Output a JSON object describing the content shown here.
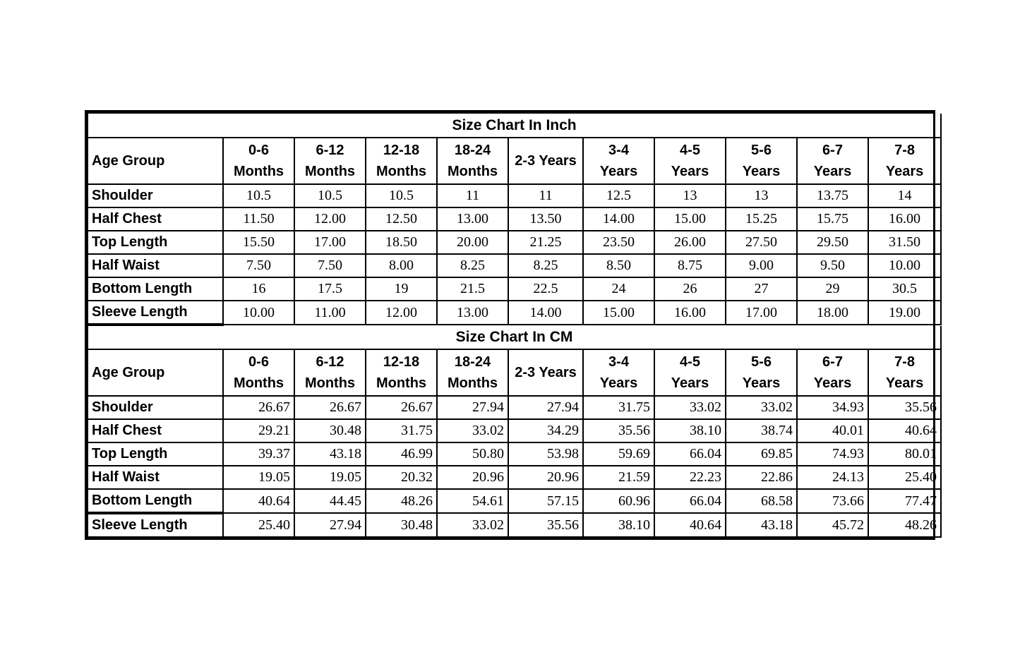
{
  "page": {
    "background_color": "#ffffff",
    "text_color": "#000000",
    "border_color": "#000000"
  },
  "chart_data": [
    {
      "type": "table",
      "title": "Size Chart In Inch",
      "unit": "inch",
      "corner_label": "Age Group",
      "columns": [
        [
          "0-6",
          "Months"
        ],
        [
          "6-12",
          "Months"
        ],
        [
          "12-18",
          "Months"
        ],
        [
          "18-24",
          "Months"
        ],
        [
          "2-3 Years"
        ],
        [
          "3-4",
          "Years"
        ],
        [
          "4-5",
          "Years"
        ],
        [
          "5-6",
          "Years"
        ],
        [
          "6-7",
          "Years"
        ],
        [
          "7-8",
          "Years"
        ]
      ],
      "rows": [
        {
          "label": "Shoulder",
          "values": [
            "10.5",
            "10.5",
            "10.5",
            "11",
            "11",
            "12.5",
            "13",
            "13",
            "13.75",
            "14"
          ]
        },
        {
          "label": "Half Chest",
          "values": [
            "11.50",
            "12.00",
            "12.50",
            "13.00",
            "13.50",
            "14.00",
            "15.00",
            "15.25",
            "15.75",
            "16.00"
          ]
        },
        {
          "label": "Top Length",
          "values": [
            "15.50",
            "17.00",
            "18.50",
            "20.00",
            "21.25",
            "23.50",
            "26.00",
            "27.50",
            "29.50",
            "31.50"
          ]
        },
        {
          "label": "Half Waist",
          "values": [
            "7.50",
            "7.50",
            "8.00",
            "8.25",
            "8.25",
            "8.50",
            "8.75",
            "9.00",
            "9.50",
            "10.00"
          ]
        },
        {
          "label": "Bottom Length",
          "values": [
            "16",
            "17.5",
            "19",
            "21.5",
            "22.5",
            "24",
            "26",
            "27",
            "29",
            "30.5"
          ]
        },
        {
          "label": "Sleeve Length",
          "values": [
            "10.00",
            "11.00",
            "12.00",
            "13.00",
            "14.00",
            "15.00",
            "16.00",
            "17.00",
            "18.00",
            "19.00"
          ]
        }
      ]
    },
    {
      "type": "table",
      "title": "Size Chart In CM",
      "unit": "cm",
      "corner_label": "Age Group",
      "columns": [
        [
          "0-6",
          "Months"
        ],
        [
          "6-12",
          "Months"
        ],
        [
          "12-18",
          "Months"
        ],
        [
          "18-24",
          "Months"
        ],
        [
          "2-3 Years"
        ],
        [
          "3-4",
          "Years"
        ],
        [
          "4-5",
          "Years"
        ],
        [
          "5-6",
          "Years"
        ],
        [
          "6-7",
          "Years"
        ],
        [
          "7-8",
          "Years"
        ]
      ],
      "rows": [
        {
          "label": "Shoulder",
          "values": [
            "26.67",
            "26.67",
            "26.67",
            "27.94",
            "27.94",
            "31.75",
            "33.02",
            "33.02",
            "34.93",
            "35.56"
          ]
        },
        {
          "label": "Half Chest",
          "values": [
            "29.21",
            "30.48",
            "31.75",
            "33.02",
            "34.29",
            "35.56",
            "38.10",
            "38.74",
            "40.01",
            "40.64"
          ]
        },
        {
          "label": "Top Length",
          "values": [
            "39.37",
            "43.18",
            "46.99",
            "50.80",
            "53.98",
            "59.69",
            "66.04",
            "69.85",
            "74.93",
            "80.01"
          ]
        },
        {
          "label": "Half Waist",
          "values": [
            "19.05",
            "19.05",
            "20.32",
            "20.96",
            "20.96",
            "21.59",
            "22.23",
            "22.86",
            "24.13",
            "25.40"
          ]
        },
        {
          "label": "Bottom Length",
          "values": [
            "40.64",
            "44.45",
            "48.26",
            "54.61",
            "57.15",
            "60.96",
            "66.04",
            "68.58",
            "73.66",
            "77.47"
          ]
        },
        {
          "label": "Sleeve Length",
          "values": [
            "25.40",
            "27.94",
            "30.48",
            "33.02",
            "35.56",
            "38.10",
            "40.64",
            "43.18",
            "45.72",
            "48.26"
          ]
        }
      ]
    }
  ]
}
